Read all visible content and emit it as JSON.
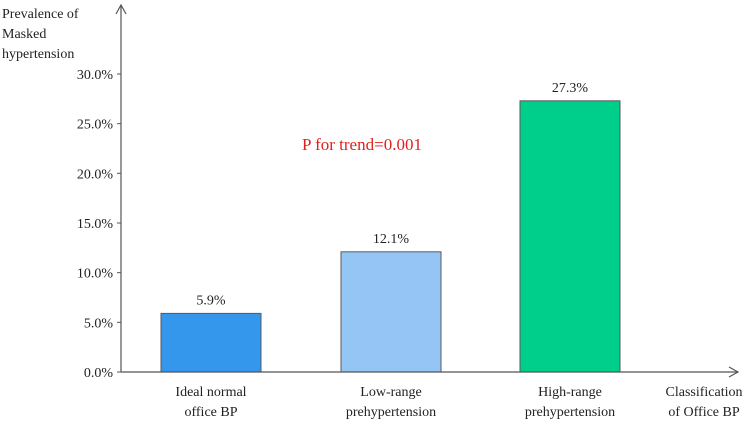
{
  "chart_data": {
    "type": "bar",
    "ylabel_lines": [
      "Prevalence of",
      "Masked",
      "hypertension"
    ],
    "xlabel_lines": [
      "Classification",
      "of Office BP"
    ],
    "categories": [
      {
        "lines": [
          "Ideal normal",
          "office BP"
        ]
      },
      {
        "lines": [
          "Low-range",
          "prehypertension"
        ]
      },
      {
        "lines": [
          "High-range",
          "prehypertension"
        ]
      }
    ],
    "values": [
      5.9,
      12.1,
      27.3
    ],
    "data_labels": [
      "5.9%",
      "12.1%",
      "27.3%"
    ],
    "bar_colors": [
      "#3497ec",
      "#94c5f4",
      "#00cf8c"
    ],
    "ylim": [
      0,
      30
    ],
    "y_ticks": [
      {
        "value": 0,
        "label": "0.0%"
      },
      {
        "value": 5,
        "label": "5.0%"
      },
      {
        "value": 10,
        "label": "10.0%"
      },
      {
        "value": 15,
        "label": "15.0%"
      },
      {
        "value": 20,
        "label": "20.0%"
      },
      {
        "value": 25,
        "label": "25.0%"
      },
      {
        "value": 30,
        "label": "30.0%"
      }
    ],
    "grid": false,
    "annotation": {
      "text": "P for trend=0.001",
      "color": "#e0201b"
    }
  }
}
